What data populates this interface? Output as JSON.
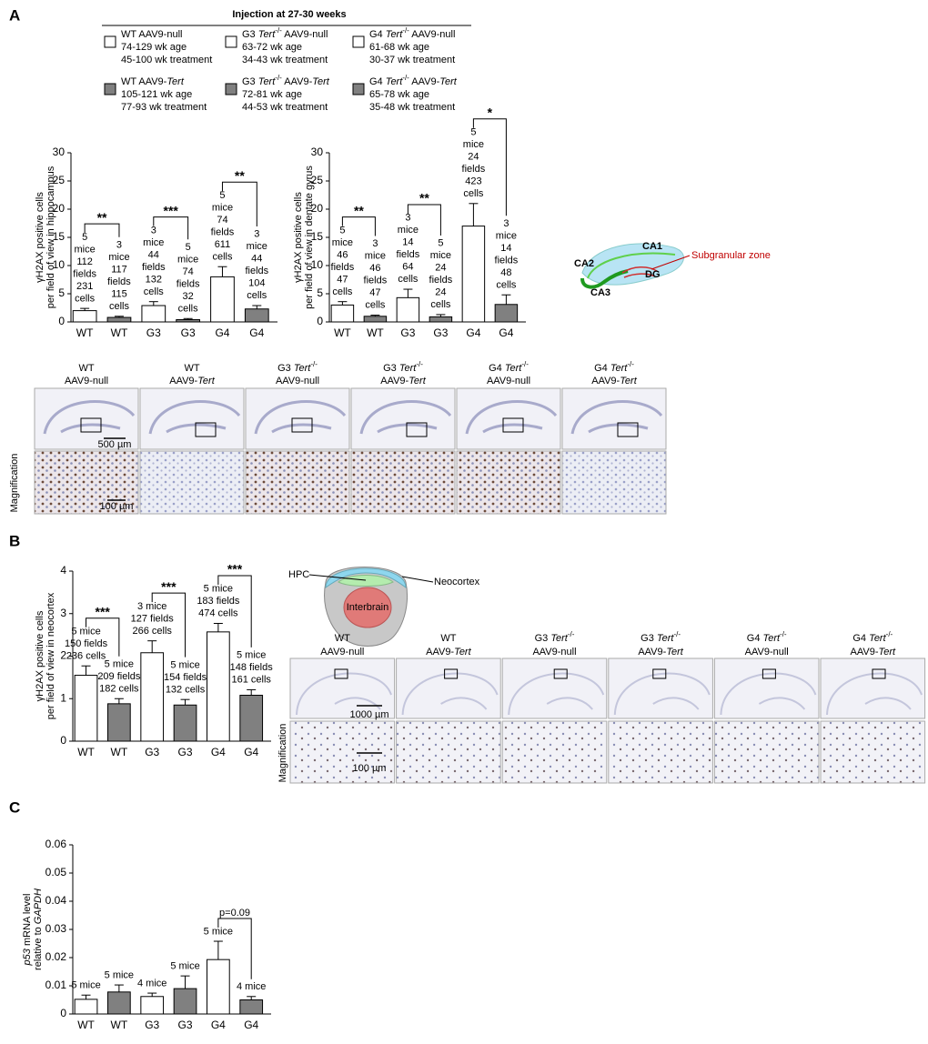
{
  "panel_labels": [
    "A",
    "B",
    "C"
  ],
  "legend": {
    "title": "Injection at 27-30 weeks",
    "entries": [
      {
        "label": [
          "WT AAV9-null"
        ],
        "lines": [
          "74-129 wk age",
          "45-100 wk treatment"
        ],
        "color": "#ffffff"
      },
      {
        "label": [
          "G3 ",
          {
            "italic": "Tert"
          },
          {
            "sup": "-/-"
          },
          " AAV9-null"
        ],
        "lines": [
          "63-72 wk age",
          "34-43 wk treatment"
        ],
        "color": "#ffffff"
      },
      {
        "label": [
          "G4 ",
          {
            "italic": "Tert"
          },
          {
            "sup": "-/-"
          },
          " AAV9-null"
        ],
        "lines": [
          "61-68 wk age",
          "30-37 wk treatment"
        ],
        "color": "#ffffff"
      },
      {
        "label": [
          "WT AAV9-",
          {
            "italic": "Tert"
          }
        ],
        "lines": [
          "105-121 wk age",
          "77-93 wk treatment"
        ],
        "color": "#808080"
      },
      {
        "label": [
          "G3 ",
          {
            "italic": "Tert"
          },
          {
            "sup": "-/-"
          },
          " AAV9-",
          {
            "italic": "Tert"
          }
        ],
        "lines": [
          "72-81 wk age",
          "44-53 wk treatment"
        ],
        "color": "#808080"
      },
      {
        "label": [
          "G4 ",
          {
            "italic": "Tert"
          },
          {
            "sup": "-/-"
          },
          " AAV9-",
          {
            "italic": "Tert"
          }
        ],
        "lines": [
          "65-78 wk age",
          "35-48 wk treatment"
        ],
        "color": "#808080"
      }
    ]
  },
  "chart_data": [
    {
      "type": "bar",
      "ylabel": [
        [
          "γH2AX positive cells"
        ],
        [
          "per field of view in hippocampus"
        ]
      ],
      "categories": [
        "WT",
        "WT",
        "G3",
        "G3",
        "G4",
        "G4"
      ],
      "values": [
        2.0,
        0.8,
        2.9,
        0.4,
        8.0,
        2.3
      ],
      "errors": [
        0.4,
        0.2,
        0.7,
        0.2,
        1.8,
        0.6
      ],
      "colors": [
        "#ffffff",
        "#808080",
        "#ffffff",
        "#808080",
        "#ffffff",
        "#808080"
      ],
      "annotations": [
        [
          "5",
          "mice",
          "112",
          "fields",
          "231",
          "cells"
        ],
        [
          "3",
          "mice",
          "117",
          "fields",
          "115",
          "cells"
        ],
        [
          "3",
          "mice",
          "44",
          "fields",
          "132",
          "cells"
        ],
        [
          "5",
          "mice",
          "74",
          "fields",
          "32",
          "cells"
        ],
        [
          "5",
          "mice",
          "74",
          "fields",
          "611",
          "cells"
        ],
        [
          "3",
          "mice",
          "44",
          "fields",
          "104",
          "cells"
        ]
      ],
      "significance": [
        {
          "from": 0,
          "to": 1,
          "label": "**"
        },
        {
          "from": 2,
          "to": 3,
          "label": "***"
        },
        {
          "from": 4,
          "to": 5,
          "label": "**"
        }
      ],
      "ylim": [
        0,
        30
      ],
      "yticks": [
        0,
        5,
        10,
        15,
        20,
        25,
        30
      ]
    },
    {
      "type": "bar",
      "ylabel": [
        [
          "γH2AX positive cells"
        ],
        [
          "per field of view in dentate gyrus"
        ]
      ],
      "categories": [
        "WT",
        "WT",
        "G3",
        "G3",
        "G4",
        "G4"
      ],
      "values": [
        3.0,
        1.0,
        4.3,
        0.9,
        17.0,
        3.1
      ],
      "errors": [
        0.6,
        0.2,
        1.5,
        0.4,
        4.0,
        1.7
      ],
      "colors": [
        "#ffffff",
        "#808080",
        "#ffffff",
        "#808080",
        "#ffffff",
        "#808080"
      ],
      "annotations": [
        [
          "5",
          "mice",
          "46",
          "fields",
          "47",
          "cells"
        ],
        [
          "3",
          "mice",
          "46",
          "fields",
          "47",
          "cells"
        ],
        [
          "3",
          "mice",
          "14",
          "fields",
          "64",
          "cells"
        ],
        [
          "5",
          "mice",
          "24",
          "fields",
          "24",
          "cells"
        ],
        [
          "5",
          "mice",
          "24",
          "fields",
          "423",
          "cells"
        ],
        [
          "3",
          "mice",
          "14",
          "fields",
          "48",
          "cells"
        ]
      ],
      "significance": [
        {
          "from": 0,
          "to": 1,
          "label": "**"
        },
        {
          "from": 2,
          "to": 3,
          "label": "**"
        },
        {
          "from": 4,
          "to": 5,
          "label": "*"
        }
      ],
      "ylim": [
        0,
        30
      ],
      "yticks": [
        0,
        5,
        10,
        15,
        20,
        25,
        30
      ]
    },
    {
      "type": "bar",
      "ylabel": [
        [
          "γH2AX  positive cells"
        ],
        [
          "per field of view in neocortex"
        ]
      ],
      "categories": [
        "WT",
        "WT",
        "G3",
        "G3",
        "G4",
        "G4"
      ],
      "values": [
        1.55,
        0.88,
        2.08,
        0.85,
        2.57,
        1.08
      ],
      "errors": [
        0.22,
        0.12,
        0.28,
        0.13,
        0.2,
        0.13
      ],
      "colors": [
        "#ffffff",
        "#808080",
        "#ffffff",
        "#808080",
        "#ffffff",
        "#808080"
      ],
      "annotations": [
        [
          "5 mice",
          "150 fields",
          "236 cells"
        ],
        [
          "5 mice",
          "209 fields",
          "182 cells"
        ],
        [
          "3 mice",
          "127 fields",
          "266 cells"
        ],
        [
          "5 mice",
          "154 fields",
          "132 cells"
        ],
        [
          "5 mice",
          "183 fields",
          "474 cells"
        ],
        [
          "5 mice",
          "148 fields",
          "161 cells"
        ]
      ],
      "significance": [
        {
          "from": 0,
          "to": 1,
          "label": "***"
        },
        {
          "from": 2,
          "to": 3,
          "label": "***"
        },
        {
          "from": 4,
          "to": 5,
          "label": "***"
        }
      ],
      "ylim": [
        0,
        4
      ],
      "yticks": [
        0,
        1,
        2,
        3,
        4
      ]
    },
    {
      "type": "bar",
      "ylabel": [
        [
          {
            "italic": "p53"
          },
          " mRNA level"
        ],
        [
          "relative to ",
          {
            "italic": "GAPDH"
          }
        ]
      ],
      "categories": [
        "WT",
        "WT",
        "G3",
        "G3",
        "G4",
        "G4"
      ],
      "values": [
        0.0052,
        0.0078,
        0.0062,
        0.009,
        0.0193,
        0.005
      ],
      "errors": [
        0.0015,
        0.0025,
        0.0012,
        0.0045,
        0.0065,
        0.0012
      ],
      "colors": [
        "#ffffff",
        "#808080",
        "#ffffff",
        "#808080",
        "#ffffff",
        "#808080"
      ],
      "annotations": [
        [
          "5 mice"
        ],
        [
          "5 mice"
        ],
        [
          "4 mice"
        ],
        [
          "5 mice"
        ],
        [
          "5 mice"
        ],
        [
          "4 mice"
        ]
      ],
      "significance": [
        {
          "from": 4,
          "to": 5,
          "label": "p=0.09"
        }
      ],
      "ylim": [
        0,
        0.06
      ],
      "yticks": [
        0,
        0.01,
        0.02,
        0.03,
        0.04,
        0.05,
        0.06
      ]
    }
  ],
  "hippocampus_diagram": {
    "labels": [
      "CA1",
      "CA2",
      "CA3",
      "DG",
      "Subgranular zone"
    ]
  },
  "hippocampus_images": {
    "headers": [
      [
        [
          "WT"
        ],
        [
          "AAV9-null"
        ]
      ],
      [
        [
          "WT"
        ],
        [
          "AAV9-",
          {
            "italic": "Tert"
          }
        ]
      ],
      [
        [
          "G3 ",
          {
            "italic": "Tert"
          },
          {
            "sup": "-/-"
          }
        ],
        [
          "AAV9-null"
        ]
      ],
      [
        [
          "G3 ",
          {
            "italic": "Tert"
          },
          {
            "sup": "-/-"
          }
        ],
        [
          "AAV9-",
          {
            "italic": "Tert"
          }
        ]
      ],
      [
        [
          "G4 ",
          {
            "italic": "Tert"
          },
          {
            "sup": "-/-"
          }
        ],
        [
          "AAV9-null"
        ]
      ],
      [
        [
          "G4 ",
          {
            "italic": "Tert"
          },
          {
            "sup": "-/-"
          }
        ],
        [
          "AAV9-",
          {
            "italic": "Tert"
          }
        ]
      ]
    ],
    "row_label": "Magnification",
    "scale_bars": [
      "500 µm",
      "100 µm"
    ]
  },
  "brain_diagram": {
    "labels": [
      "HPC",
      "Neocortex",
      "Interbrain"
    ]
  },
  "neocortex_images": {
    "headers": [
      [
        [
          "WT"
        ],
        [
          "AAV9-null"
        ]
      ],
      [
        [
          "WT"
        ],
        [
          "AAV9-",
          {
            "italic": "Tert"
          }
        ]
      ],
      [
        [
          "G3 ",
          {
            "italic": "Tert"
          },
          {
            "sup": "-/-"
          }
        ],
        [
          "AAV9-null"
        ]
      ],
      [
        [
          "G3 ",
          {
            "italic": "Tert"
          },
          {
            "sup": "-/-"
          }
        ],
        [
          "AAV9-",
          {
            "italic": "Tert"
          }
        ]
      ],
      [
        [
          "G4 ",
          {
            "italic": "Tert"
          },
          {
            "sup": "-/-"
          }
        ],
        [
          "AAV9-null"
        ]
      ],
      [
        [
          "G4 ",
          {
            "italic": "Tert"
          },
          {
            "sup": "-/-"
          }
        ],
        [
          "AAV9-",
          {
            "italic": "Tert"
          }
        ]
      ]
    ],
    "row_label": "Magnification",
    "scale_bars": [
      "1000 µm",
      "100 µm"
    ]
  }
}
